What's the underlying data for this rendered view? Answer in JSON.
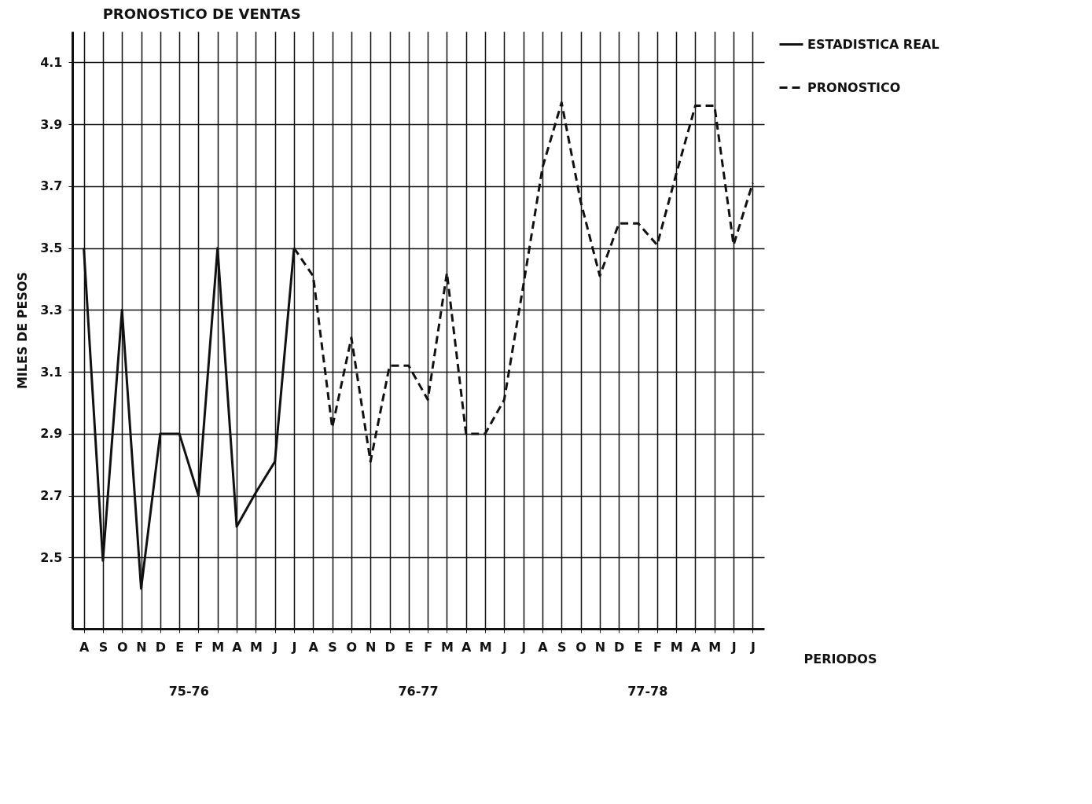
{
  "chart_data": {
    "type": "line",
    "title": "PRONOSTICO DE VENTAS",
    "xlabel": "PERIODOS",
    "ylabel": "MILES DE PESOS",
    "categories": [
      "A",
      "S",
      "O",
      "N",
      "D",
      "E",
      "F",
      "M",
      "A",
      "M",
      "J",
      "J",
      "A",
      "S",
      "O",
      "N",
      "D",
      "E",
      "F",
      "M",
      "A",
      "M",
      "J",
      "J",
      "A",
      "S",
      "O",
      "N",
      "D",
      "E",
      "F",
      "M",
      "A",
      "M",
      "J",
      "J"
    ],
    "series": [
      {
        "name": "ESTADISTICA REAL",
        "color": "#111111",
        "line_style": "solid",
        "values": [
          3.5,
          2.49,
          3.3,
          2.4,
          2.9,
          2.9,
          2.7,
          3.5,
          2.6,
          2.71,
          2.81,
          3.5,
          null,
          null,
          null,
          null,
          null,
          null,
          null,
          null,
          null,
          null,
          null,
          null,
          null,
          null,
          null,
          null,
          null,
          null,
          null,
          null,
          null,
          null,
          null,
          null
        ]
      },
      {
        "name": "PRONOSTICO",
        "color": "#111111",
        "line_style": "dashed",
        "values": [
          null,
          null,
          null,
          null,
          null,
          null,
          null,
          null,
          null,
          null,
          null,
          3.5,
          3.41,
          2.92,
          3.21,
          2.81,
          3.12,
          3.12,
          3.01,
          3.42,
          2.9,
          2.9,
          3.01,
          3.38,
          3.76,
          3.97,
          3.65,
          3.41,
          3.58,
          3.58,
          3.51,
          3.74,
          3.96,
          3.96,
          3.51,
          3.71
        ]
      }
    ],
    "ylim": [
      2.27,
      4.2
    ],
    "yticks": [
      2.5,
      2.7,
      2.9,
      3.1,
      3.3,
      3.5,
      3.7,
      3.9,
      4.1
    ],
    "grid": true,
    "legend": "right",
    "marker": "none",
    "annotations": [
      "75-76",
      "76-77",
      "77-78"
    ]
  }
}
